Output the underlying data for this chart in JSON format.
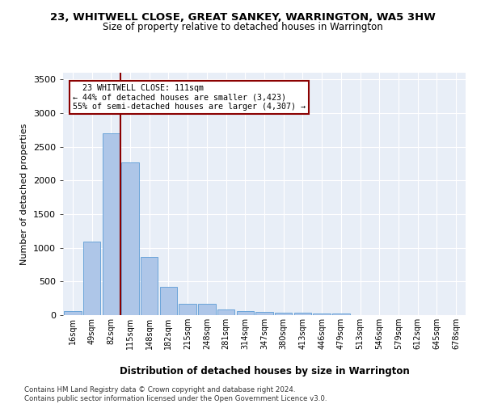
{
  "title": "23, WHITWELL CLOSE, GREAT SANKEY, WARRINGTON, WA5 3HW",
  "subtitle": "Size of property relative to detached houses in Warrington",
  "xlabel": "Distribution of detached houses by size in Warrington",
  "ylabel": "Number of detached properties",
  "categories": [
    "16sqm",
    "49sqm",
    "82sqm",
    "115sqm",
    "148sqm",
    "182sqm",
    "215sqm",
    "248sqm",
    "281sqm",
    "314sqm",
    "347sqm",
    "380sqm",
    "413sqm",
    "446sqm",
    "479sqm",
    "513sqm",
    "546sqm",
    "579sqm",
    "612sqm",
    "645sqm",
    "678sqm"
  ],
  "values": [
    55,
    1090,
    2700,
    2270,
    870,
    415,
    165,
    165,
    90,
    60,
    50,
    40,
    35,
    20,
    25,
    5,
    5,
    5,
    0,
    0,
    0
  ],
  "bar_color": "#aec6e8",
  "bar_edge_color": "#5b9bd5",
  "vline_color": "#8b0000",
  "annotation_text": "  23 WHITWELL CLOSE: 111sqm\n← 44% of detached houses are smaller (3,423)\n55% of semi-detached houses are larger (4,307) →",
  "annotation_box_color": "#ffffff",
  "annotation_box_edge": "#8b0000",
  "bg_color": "#e8eef7",
  "grid_color": "#ffffff",
  "footnote": "Contains HM Land Registry data © Crown copyright and database right 2024.\nContains public sector information licensed under the Open Government Licence v3.0.",
  "ylim": [
    0,
    3600
  ],
  "yticks": [
    0,
    500,
    1000,
    1500,
    2000,
    2500,
    3000,
    3500
  ]
}
